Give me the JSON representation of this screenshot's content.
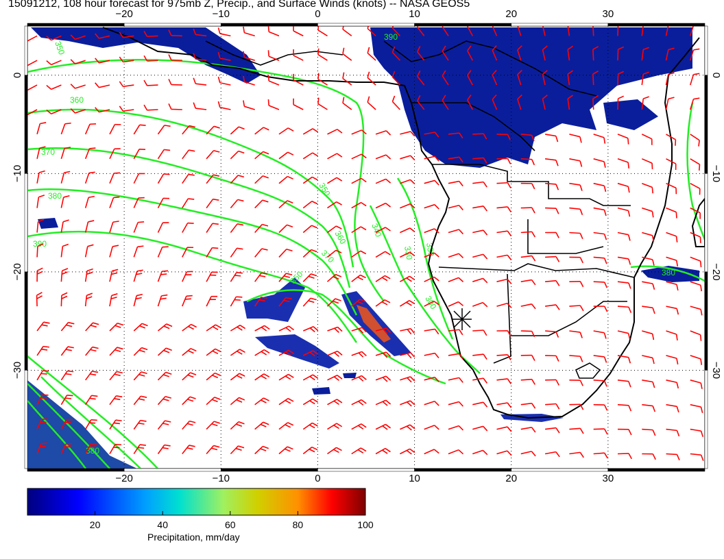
{
  "title": "15091212, 108 hour forecast for 975mb Z, Precip., and Surface Winds (knots) -- NASA GEOS5",
  "map": {
    "lon_ticks": [
      -20,
      -10,
      0,
      10,
      20,
      30
    ],
    "lat_ticks": [
      0,
      -10,
      -20,
      -30
    ],
    "lon_range": [
      -30,
      40
    ],
    "lat_range": [
      -40,
      5
    ],
    "grid": "dotted",
    "colors": {
      "wind_barbs": "#ff0000",
      "height_contours": "#22ee22",
      "coastlines": "#000000",
      "precip_low": "#0a1e9c"
    },
    "contour_labels": [
      "350",
      "360",
      "370",
      "380",
      "390",
      "350",
      "360",
      "370",
      "340",
      "330",
      "350",
      "330",
      "300",
      "390",
      "380",
      "380"
    ],
    "marker": "asterisk"
  },
  "colorbar": {
    "ticks": [
      "20",
      "40",
      "60",
      "80",
      "100"
    ],
    "label": "Precipitation, mm/day",
    "colors": [
      "#00007f",
      "#0000ff",
      "#00a0ff",
      "#00e0d0",
      "#80ff80",
      "#d0d000",
      "#ff9000",
      "#ff0000",
      "#7f0000"
    ]
  }
}
